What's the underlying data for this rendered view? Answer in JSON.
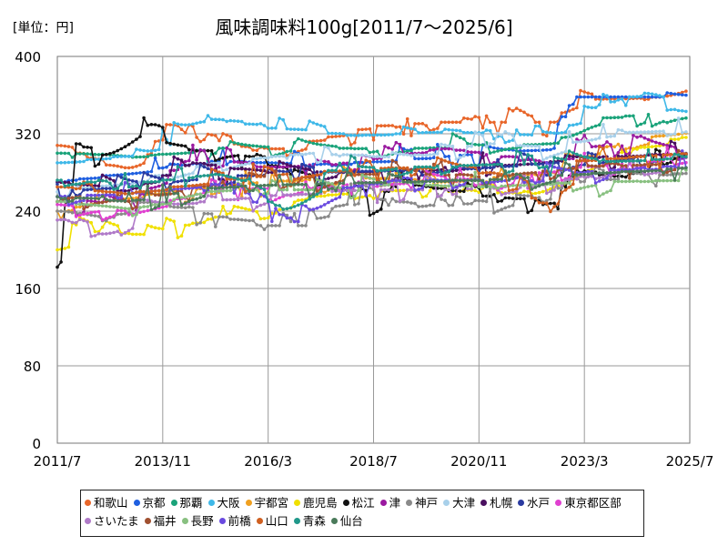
{
  "header": {
    "unit_label": "[単位：円]",
    "title": "風味調味料100g[2011/7～2025/6]"
  },
  "chart_data": {
    "type": "line",
    "title": "風味調味料100g[2011/7～2025/6]",
    "ylabel": "円",
    "ylim": [
      0,
      400
    ],
    "yticks": [
      0,
      80,
      160,
      240,
      320,
      400
    ],
    "xlim": [
      2011.5,
      2025.5
    ],
    "xticks": [
      {
        "label": "2011/7",
        "t": 2011.5
      },
      {
        "label": "2013/11",
        "t": 2013.833
      },
      {
        "label": "2016/3",
        "t": 2016.167
      },
      {
        "label": "2018/7",
        "t": 2018.5
      },
      {
        "label": "2020/11",
        "t": 2020.833
      },
      {
        "label": "2023/3",
        "t": 2023.167
      },
      {
        "label": "2025/7",
        "t": 2025.5
      }
    ],
    "grid": true,
    "legend_position": "bottom",
    "series": [
      {
        "name": "和歌山",
        "color": "#e8662a",
        "anchors": [
          [
            2011.5,
            308
          ],
          [
            2013.0,
            280
          ],
          [
            2014.0,
            328
          ],
          [
            2016.0,
            300
          ],
          [
            2018.5,
            328
          ],
          [
            2020.0,
            332
          ],
          [
            2022.5,
            332
          ],
          [
            2022.9,
            355
          ],
          [
            2024.8,
            358
          ],
          [
            2025.5,
            373
          ]
        ]
      },
      {
        "name": "京都",
        "color": "#1f5fe0",
        "anchors": [
          [
            2011.5,
            270
          ],
          [
            2013.0,
            280
          ],
          [
            2015.0,
            292
          ],
          [
            2017.0,
            288
          ],
          [
            2019.0,
            292
          ],
          [
            2021.0,
            300
          ],
          [
            2022.5,
            305
          ],
          [
            2022.9,
            358
          ],
          [
            2025.5,
            358
          ]
        ]
      },
      {
        "name": "那覇",
        "color": "#1aa37a",
        "anchors": [
          [
            2011.5,
            300
          ],
          [
            2013.0,
            295
          ],
          [
            2015.0,
            305
          ],
          [
            2017.0,
            305
          ],
          [
            2020.0,
            305
          ],
          [
            2022.5,
            310
          ],
          [
            2023.2,
            335
          ],
          [
            2024.5,
            340
          ],
          [
            2025.5,
            340
          ]
        ]
      },
      {
        "name": "大阪",
        "color": "#3fb8e8",
        "anchors": [
          [
            2011.5,
            290
          ],
          [
            2013.5,
            300
          ],
          [
            2014.6,
            337
          ],
          [
            2016.0,
            328
          ],
          [
            2018.0,
            318
          ],
          [
            2020.0,
            322
          ],
          [
            2022.5,
            318
          ],
          [
            2023.5,
            350
          ],
          [
            2024.5,
            362
          ],
          [
            2025.5,
            338
          ]
        ]
      },
      {
        "name": "宇都宮",
        "color": "#f0a020",
        "anchors": [
          [
            2011.5,
            240
          ],
          [
            2013.0,
            255
          ],
          [
            2016.0,
            270
          ],
          [
            2018.0,
            275
          ],
          [
            2020.0,
            270
          ],
          [
            2022.5,
            280
          ],
          [
            2023.5,
            305
          ],
          [
            2025.5,
            325
          ]
        ]
      },
      {
        "name": "鹿児島",
        "color": "#f0e000",
        "anchors": [
          [
            2011.5,
            200
          ],
          [
            2012.0,
            220
          ],
          [
            2013.5,
            215
          ],
          [
            2015.5,
            240
          ],
          [
            2016.0,
            232
          ],
          [
            2017.0,
            255
          ],
          [
            2019.0,
            262
          ],
          [
            2022.0,
            258
          ],
          [
            2023.0,
            290
          ],
          [
            2025.5,
            318
          ]
        ]
      },
      {
        "name": "松江",
        "color": "#111111",
        "anchors": [
          [
            2011.5,
            182
          ],
          [
            2011.8,
            312
          ],
          [
            2012.5,
            298
          ],
          [
            2013.5,
            340
          ],
          [
            2014.0,
            305
          ],
          [
            2015.5,
            300
          ],
          [
            2017.5,
            262
          ],
          [
            2018.5,
            248
          ],
          [
            2019.0,
            270
          ],
          [
            2021.0,
            255
          ],
          [
            2022.5,
            250
          ],
          [
            2023.0,
            280
          ],
          [
            2024.0,
            275
          ],
          [
            2025.5,
            308
          ]
        ]
      },
      {
        "name": "津",
        "color": "#9a1aa0",
        "anchors": [
          [
            2011.5,
            250
          ],
          [
            2013.0,
            245
          ],
          [
            2014.5,
            300
          ],
          [
            2016.0,
            285
          ],
          [
            2018.0,
            290
          ],
          [
            2020.0,
            305
          ],
          [
            2022.5,
            290
          ],
          [
            2023.5,
            310
          ],
          [
            2025.5,
            300
          ]
        ]
      },
      {
        "name": "神戸",
        "color": "#8a8a8a",
        "anchors": [
          [
            2011.5,
            240
          ],
          [
            2012.5,
            230
          ],
          [
            2013.5,
            250
          ],
          [
            2016.0,
            225
          ],
          [
            2017.0,
            225
          ],
          [
            2018.0,
            255
          ],
          [
            2020.0,
            245
          ],
          [
            2022.0,
            255
          ],
          [
            2023.0,
            270
          ],
          [
            2025.5,
            280
          ]
        ]
      },
      {
        "name": "大津",
        "color": "#a8d0ea",
        "anchors": [
          [
            2011.5,
            260
          ],
          [
            2013.0,
            270
          ],
          [
            2015.0,
            290
          ],
          [
            2017.0,
            300
          ],
          [
            2019.0,
            295
          ],
          [
            2021.0,
            310
          ],
          [
            2022.5,
            305
          ],
          [
            2023.5,
            320
          ],
          [
            2025.5,
            325
          ]
        ]
      },
      {
        "name": "札幌",
        "color": "#4a1060",
        "anchors": [
          [
            2011.5,
            270
          ],
          [
            2013.0,
            260
          ],
          [
            2014.5,
            290
          ],
          [
            2016.0,
            280
          ],
          [
            2018.0,
            280
          ],
          [
            2020.0,
            285
          ],
          [
            2022.0,
            290
          ],
          [
            2023.0,
            295
          ],
          [
            2025.5,
            300
          ]
        ]
      },
      {
        "name": "水戸",
        "color": "#2a3aa0",
        "anchors": [
          [
            2011.5,
            260
          ],
          [
            2013.0,
            265
          ],
          [
            2015.0,
            275
          ],
          [
            2017.0,
            280
          ],
          [
            2019.0,
            282
          ],
          [
            2021.0,
            285
          ],
          [
            2023.0,
            292
          ],
          [
            2025.5,
            300
          ]
        ]
      },
      {
        "name": "東京都区部",
        "color": "#e040d0",
        "anchors": [
          [
            2011.5,
            245
          ],
          [
            2013.0,
            240
          ],
          [
            2015.0,
            262
          ],
          [
            2017.0,
            265
          ],
          [
            2019.0,
            270
          ],
          [
            2021.0,
            272
          ],
          [
            2023.0,
            285
          ],
          [
            2025.5,
            295
          ]
        ]
      },
      {
        "name": "さいたま",
        "color": "#b07ac8",
        "anchors": [
          [
            2011.5,
            235
          ],
          [
            2012.5,
            215
          ],
          [
            2013.5,
            245
          ],
          [
            2016.0,
            255
          ],
          [
            2018.0,
            262
          ],
          [
            2020.0,
            262
          ],
          [
            2022.0,
            265
          ],
          [
            2023.5,
            280
          ],
          [
            2025.5,
            285
          ]
        ]
      },
      {
        "name": "福井",
        "color": "#a05030",
        "anchors": [
          [
            2011.5,
            260
          ],
          [
            2013.0,
            250
          ],
          [
            2015.0,
            270
          ],
          [
            2017.0,
            275
          ],
          [
            2019.0,
            280
          ],
          [
            2021.0,
            275
          ],
          [
            2023.0,
            285
          ],
          [
            2025.5,
            290
          ]
        ]
      },
      {
        "name": "長野",
        "color": "#88c080",
        "anchors": [
          [
            2011.5,
            250
          ],
          [
            2013.0,
            240
          ],
          [
            2015.0,
            262
          ],
          [
            2017.0,
            262
          ],
          [
            2019.0,
            268
          ],
          [
            2021.0,
            265
          ],
          [
            2023.0,
            270
          ],
          [
            2025.5,
            272
          ]
        ]
      },
      {
        "name": "前橋",
        "color": "#6a4ae0",
        "anchors": [
          [
            2011.5,
            255
          ],
          [
            2013.0,
            258
          ],
          [
            2015.0,
            268
          ],
          [
            2016.8,
            228
          ],
          [
            2017.5,
            262
          ],
          [
            2019.0,
            272
          ],
          [
            2021.0,
            272
          ],
          [
            2023.0,
            280
          ],
          [
            2025.5,
            288
          ]
        ]
      },
      {
        "name": "山口",
        "color": "#d06020",
        "anchors": [
          [
            2011.5,
            265
          ],
          [
            2013.0,
            258
          ],
          [
            2015.0,
            272
          ],
          [
            2017.0,
            280
          ],
          [
            2019.0,
            285
          ],
          [
            2021.0,
            282
          ],
          [
            2022.3,
            245
          ],
          [
            2023.0,
            292
          ],
          [
            2025.5,
            300
          ]
        ]
      },
      {
        "name": "青森",
        "color": "#20988a",
        "anchors": [
          [
            2011.5,
            272
          ],
          [
            2013.0,
            268
          ],
          [
            2015.0,
            278
          ],
          [
            2016.5,
            242
          ],
          [
            2017.5,
            282
          ],
          [
            2019.0,
            285
          ],
          [
            2021.0,
            288
          ],
          [
            2023.0,
            290
          ],
          [
            2025.5,
            295
          ]
        ]
      },
      {
        "name": "仙台",
        "color": "#4a7a5a",
        "anchors": [
          [
            2011.5,
            255
          ],
          [
            2013.0,
            250
          ],
          [
            2015.0,
            265
          ],
          [
            2017.0,
            268
          ],
          [
            2019.0,
            270
          ],
          [
            2021.0,
            272
          ],
          [
            2023.0,
            278
          ],
          [
            2025.5,
            285
          ]
        ]
      }
    ]
  }
}
